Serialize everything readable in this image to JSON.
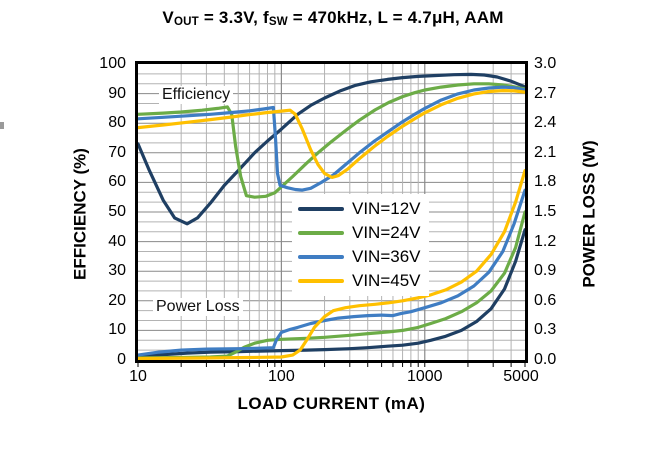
{
  "chart_data": {
    "type": "line",
    "title": "VOUT = 3.3V, fSW = 470kHz, L = 4.7μH, AAM",
    "title_parts": [
      {
        "text": "V"
      },
      {
        "text": "OUT",
        "sub": true
      },
      {
        "text": " = 3.3V, f"
      },
      {
        "text": "SW",
        "sub": true
      },
      {
        "text": " = 470kHz, L = 4.7μH, AAM"
      }
    ],
    "xlabel": "LOAD CURRENT  (mA)",
    "x_axis": {
      "scale": "log",
      "min": 10,
      "max": 5000,
      "tick_values": [
        10,
        100,
        1000,
        5000
      ],
      "tick_labels": [
        "10",
        "100",
        "1000",
        "5000"
      ]
    },
    "y_axis_left": {
      "label": "EFFICIENCY  (%)",
      "min": 0,
      "max": 100,
      "tick_labels": [
        "100",
        "90",
        "80",
        "70",
        "60",
        "50",
        "40",
        "30",
        "20",
        "10",
        "0"
      ]
    },
    "y_axis_right": {
      "label": "POWER LOSS (W)",
      "min": 0.0,
      "max": 3.0,
      "tick_labels": [
        "3.0",
        "2.7",
        "2.4",
        "2.1",
        "1.8",
        "1.5",
        "1.2",
        "0.9",
        "0.6",
        "0.3",
        "0.0"
      ]
    },
    "grid": {
      "on": true,
      "horizontal_divisions": 30,
      "vertical": "log-minor"
    },
    "annotations": {
      "efficiency": "Efficiency",
      "power_loss": "Power Loss"
    },
    "legend": {
      "position": "center",
      "entries": [
        {
          "label": "VIN=12V",
          "color": "#1F3F63"
        },
        {
          "label": "VIN=24V",
          "color": "#6CAC47"
        },
        {
          "label": "VIN=36V",
          "color": "#3F7DC3"
        },
        {
          "label": "VIN=45V",
          "color": "#FFC000"
        }
      ]
    },
    "series": [
      {
        "name": "VIN=12V",
        "color": "#1F3F63",
        "efficiency_pct": [
          [
            10,
            73
          ],
          [
            12,
            64
          ],
          [
            15,
            54
          ],
          [
            18,
            48
          ],
          [
            22,
            46
          ],
          [
            26,
            48
          ],
          [
            32,
            53
          ],
          [
            40,
            59
          ],
          [
            50,
            64
          ],
          [
            65,
            70
          ],
          [
            80,
            74
          ],
          [
            100,
            78
          ],
          [
            130,
            83
          ],
          [
            160,
            86
          ],
          [
            200,
            88.5
          ],
          [
            260,
            91
          ],
          [
            330,
            92.8
          ],
          [
            420,
            94
          ],
          [
            550,
            94.8
          ],
          [
            700,
            95.4
          ],
          [
            900,
            95.8
          ],
          [
            1200,
            96.1
          ],
          [
            1600,
            96.4
          ],
          [
            2100,
            96.5
          ],
          [
            2600,
            96.3
          ],
          [
            3200,
            95.6
          ],
          [
            4000,
            94.2
          ],
          [
            5000,
            92.3
          ]
        ],
        "power_loss_w": [
          [
            10,
            0.04
          ],
          [
            15,
            0.055
          ],
          [
            22,
            0.07
          ],
          [
            32,
            0.08
          ],
          [
            50,
            0.085
          ],
          [
            70,
            0.09
          ],
          [
            100,
            0.095
          ],
          [
            150,
            0.1
          ],
          [
            200,
            0.105
          ],
          [
            300,
            0.115
          ],
          [
            400,
            0.125
          ],
          [
            550,
            0.14
          ],
          [
            700,
            0.15
          ],
          [
            900,
            0.17
          ],
          [
            1100,
            0.2
          ],
          [
            1400,
            0.24
          ],
          [
            1800,
            0.3
          ],
          [
            2300,
            0.39
          ],
          [
            2900,
            0.52
          ],
          [
            3600,
            0.72
          ],
          [
            4300,
            1.0
          ],
          [
            5000,
            1.32
          ]
        ]
      },
      {
        "name": "VIN=24V",
        "color": "#6CAC47",
        "efficiency_pct": [
          [
            10,
            83
          ],
          [
            15,
            83.4
          ],
          [
            20,
            83.8
          ],
          [
            28,
            84.4
          ],
          [
            36,
            85
          ],
          [
            42,
            85.5
          ],
          [
            45,
            83
          ],
          [
            48,
            72
          ],
          [
            52,
            62
          ],
          [
            57,
            55.5
          ],
          [
            65,
            55
          ],
          [
            78,
            55.3
          ],
          [
            90,
            56.5
          ],
          [
            100,
            58.5
          ],
          [
            120,
            62
          ],
          [
            150,
            66.5
          ],
          [
            180,
            70
          ],
          [
            220,
            73.5
          ],
          [
            280,
            77.5
          ],
          [
            350,
            81
          ],
          [
            450,
            84.5
          ],
          [
            560,
            87
          ],
          [
            700,
            89
          ],
          [
            850,
            90.3
          ],
          [
            1000,
            91.2
          ],
          [
            1300,
            92.2
          ],
          [
            1700,
            92.9
          ],
          [
            2200,
            93.3
          ],
          [
            2800,
            93.3
          ],
          [
            3500,
            92.9
          ],
          [
            4200,
            92.3
          ],
          [
            5000,
            91.6
          ]
        ],
        "power_loss_w": [
          [
            10,
            0.02
          ],
          [
            20,
            0.025
          ],
          [
            32,
            0.03
          ],
          [
            42,
            0.04
          ],
          [
            48,
            0.08
          ],
          [
            55,
            0.13
          ],
          [
            65,
            0.17
          ],
          [
            80,
            0.2
          ],
          [
            100,
            0.21
          ],
          [
            150,
            0.22
          ],
          [
            200,
            0.23
          ],
          [
            300,
            0.25
          ],
          [
            420,
            0.27
          ],
          [
            560,
            0.285
          ],
          [
            700,
            0.3
          ],
          [
            900,
            0.33
          ],
          [
            1100,
            0.37
          ],
          [
            1400,
            0.42
          ],
          [
            1800,
            0.49
          ],
          [
            2300,
            0.58
          ],
          [
            2900,
            0.7
          ],
          [
            3600,
            0.88
          ],
          [
            4300,
            1.14
          ],
          [
            5000,
            1.5
          ]
        ]
      },
      {
        "name": "VIN=36V",
        "color": "#3F7DC3",
        "efficiency_pct": [
          [
            10,
            81.5
          ],
          [
            15,
            82
          ],
          [
            22,
            82.5
          ],
          [
            32,
            83
          ],
          [
            45,
            83.6
          ],
          [
            60,
            84.2
          ],
          [
            75,
            84.8
          ],
          [
            88,
            85.3
          ],
          [
            91,
            75
          ],
          [
            94,
            63
          ],
          [
            98,
            59
          ],
          [
            110,
            58.2
          ],
          [
            125,
            57.6
          ],
          [
            140,
            57.4
          ],
          [
            160,
            58
          ],
          [
            190,
            60
          ],
          [
            230,
            62.5
          ],
          [
            280,
            66
          ],
          [
            350,
            70
          ],
          [
            440,
            73.8
          ],
          [
            550,
            77
          ],
          [
            700,
            80.5
          ],
          [
            850,
            83
          ],
          [
            1000,
            85
          ],
          [
            1300,
            87.8
          ],
          [
            1700,
            89.9
          ],
          [
            2200,
            91.2
          ],
          [
            2800,
            91.9
          ],
          [
            3500,
            92.2
          ],
          [
            4200,
            92
          ],
          [
            5000,
            91.2
          ]
        ],
        "power_loss_w": [
          [
            10,
            0.05
          ],
          [
            14,
            0.08
          ],
          [
            20,
            0.1
          ],
          [
            30,
            0.11
          ],
          [
            50,
            0.115
          ],
          [
            70,
            0.12
          ],
          [
            88,
            0.125
          ],
          [
            92,
            0.2
          ],
          [
            100,
            0.28
          ],
          [
            115,
            0.31
          ],
          [
            130,
            0.33
          ],
          [
            160,
            0.37
          ],
          [
            200,
            0.4
          ],
          [
            250,
            0.425
          ],
          [
            320,
            0.44
          ],
          [
            400,
            0.45
          ],
          [
            500,
            0.455
          ],
          [
            600,
            0.45
          ],
          [
            680,
            0.47
          ],
          [
            800,
            0.49
          ],
          [
            1000,
            0.53
          ],
          [
            1300,
            0.58
          ],
          [
            1700,
            0.65
          ],
          [
            2200,
            0.75
          ],
          [
            2800,
            0.89
          ],
          [
            3500,
            1.1
          ],
          [
            4200,
            1.38
          ],
          [
            5000,
            1.72
          ]
        ]
      },
      {
        "name": "VIN=45V",
        "color": "#FFC000",
        "efficiency_pct": [
          [
            10,
            78.5
          ],
          [
            15,
            79.4
          ],
          [
            22,
            80.3
          ],
          [
            32,
            81.2
          ],
          [
            45,
            82.1
          ],
          [
            60,
            82.9
          ],
          [
            80,
            83.6
          ],
          [
            100,
            84.1
          ],
          [
            115,
            84.4
          ],
          [
            125,
            83
          ],
          [
            140,
            78
          ],
          [
            160,
            71
          ],
          [
            180,
            66
          ],
          [
            200,
            63
          ],
          [
            225,
            61.7
          ],
          [
            250,
            62.3
          ],
          [
            290,
            64.5
          ],
          [
            350,
            68
          ],
          [
            440,
            72
          ],
          [
            550,
            75.5
          ],
          [
            700,
            79
          ],
          [
            850,
            81.5
          ],
          [
            1000,
            83.5
          ],
          [
            1300,
            86.2
          ],
          [
            1700,
            88.4
          ],
          [
            2200,
            89.9
          ],
          [
            2800,
            90.7
          ],
          [
            3500,
            91
          ],
          [
            4200,
            90.9
          ],
          [
            5000,
            90.5
          ]
        ],
        "power_loss_w": [
          [
            10,
            0.015
          ],
          [
            30,
            0.02
          ],
          [
            60,
            0.025
          ],
          [
            100,
            0.03
          ],
          [
            120,
            0.05
          ],
          [
            135,
            0.1
          ],
          [
            150,
            0.2
          ],
          [
            170,
            0.33
          ],
          [
            200,
            0.44
          ],
          [
            230,
            0.5
          ],
          [
            280,
            0.53
          ],
          [
            350,
            0.55
          ],
          [
            450,
            0.565
          ],
          [
            560,
            0.58
          ],
          [
            700,
            0.6
          ],
          [
            900,
            0.63
          ],
          [
            1100,
            0.66
          ],
          [
            1400,
            0.71
          ],
          [
            1800,
            0.79
          ],
          [
            2300,
            0.9
          ],
          [
            2900,
            1.07
          ],
          [
            3600,
            1.3
          ],
          [
            4300,
            1.6
          ],
          [
            5000,
            1.92
          ]
        ]
      }
    ],
    "style": {
      "grid_minor_color": "#B3B3B3",
      "grid_major_color": "#8A8A8A",
      "border_color": "#000000",
      "line_width": 3.2
    }
  }
}
